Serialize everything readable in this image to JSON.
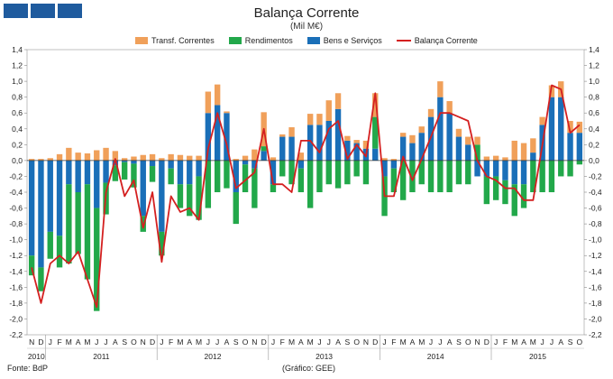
{
  "header": {
    "title": "Balança Corrente",
    "subtitle": "(Mil M€)"
  },
  "footer": {
    "source": "Fonte: BdP",
    "chart_credit": "(Gráfico: GEE)"
  },
  "colors": {
    "transf": "#f0a05a",
    "rend": "#22a84a",
    "bens": "#1a6fb8",
    "balanca": "#d42020",
    "bar_brand": "#1f5b9e"
  },
  "chart_data": {
    "type": "bar",
    "title": "Balança Corrente",
    "subtitle": "(Mil M€)",
    "stacked": true,
    "ylim": [
      -2.2,
      1.4
    ],
    "yticks": [
      "1,4",
      "1,2",
      "1,0",
      "0,8",
      "0,6",
      "0,4",
      "0,2",
      "0,0",
      "-0,2",
      "-0,4",
      "-0,6",
      "-0,8",
      "-1,0",
      "-1,2",
      "-1,4",
      "-1,6",
      "-1,8",
      "-2,0",
      "-2,2"
    ],
    "ytick_values": [
      1.4,
      1.2,
      1.0,
      0.8,
      0.6,
      0.4,
      0.2,
      0.0,
      -0.2,
      -0.4,
      -0.6,
      -0.8,
      -1.0,
      -1.2,
      -1.4,
      -1.6,
      -1.8,
      -2.0,
      -2.2
    ],
    "categories": [
      "N",
      "D",
      "J",
      "F",
      "M",
      "A",
      "M",
      "J",
      "J",
      "A",
      "S",
      "O",
      "N",
      "D",
      "J",
      "F",
      "M",
      "A",
      "M",
      "J",
      "J",
      "A",
      "S",
      "O",
      "N",
      "D",
      "J",
      "F",
      "M",
      "A",
      "M",
      "J",
      "J",
      "A",
      "S",
      "O",
      "N",
      "D",
      "J",
      "F",
      "M",
      "A",
      "M",
      "J",
      "J",
      "A",
      "S",
      "O",
      "N",
      "D",
      "J",
      "F",
      "M",
      "A",
      "M",
      "J",
      "J",
      "A",
      "S",
      "O"
    ],
    "years": [
      {
        "label": "2010",
        "start": 0,
        "end": 1
      },
      {
        "label": "2011",
        "start": 2,
        "end": 13
      },
      {
        "label": "2012",
        "start": 14,
        "end": 25
      },
      {
        "label": "2013",
        "start": 26,
        "end": 37
      },
      {
        "label": "2014",
        "start": 38,
        "end": 49
      },
      {
        "label": "2015",
        "start": 50,
        "end": 59
      }
    ],
    "series": [
      {
        "name": "Transf. Correntes",
        "type": "bar",
        "values": [
          0.02,
          0.02,
          0.03,
          0.08,
          0.16,
          0.1,
          0.09,
          0.13,
          0.16,
          0.12,
          0.03,
          0.05,
          0.07,
          0.08,
          0.03,
          0.08,
          0.07,
          0.06,
          0.06,
          0.27,
          0.26,
          0.02,
          0.02,
          0.06,
          0.14,
          0.43,
          0.04,
          0.03,
          0.12,
          0.1,
          0.14,
          0.14,
          0.26,
          0.2,
          0.06,
          0.04,
          0.1,
          0.3,
          0.03,
          0.02,
          0.05,
          0.1,
          0.08,
          0.1,
          0.2,
          0.15,
          0.1,
          0.1,
          0.1,
          0.05,
          0.06,
          0.04,
          0.25,
          0.22,
          0.18,
          0.1,
          0.15,
          0.2,
          0.15,
          0.14
        ]
      },
      {
        "name": "Rendimentos",
        "type": "bar",
        "values": [
          -0.25,
          -0.3,
          -0.34,
          -0.4,
          -1.0,
          -0.78,
          -1.2,
          -1.3,
          -0.4,
          -0.2,
          -0.22,
          -0.3,
          -0.2,
          -0.2,
          -0.3,
          -0.2,
          -0.3,
          -0.4,
          -0.55,
          -0.6,
          -0.4,
          -0.35,
          -0.4,
          -0.35,
          -0.5,
          0.06,
          -0.1,
          -0.2,
          -0.3,
          -0.3,
          -0.6,
          -0.4,
          -0.3,
          -0.35,
          -0.3,
          -0.2,
          -0.3,
          0.4,
          -0.5,
          -0.3,
          -0.5,
          -0.4,
          -0.3,
          -0.4,
          -0.4,
          -0.4,
          -0.3,
          -0.3,
          0.2,
          -0.35,
          -0.3,
          -0.3,
          -0.4,
          -0.3,
          -0.4,
          -0.4,
          -0.4,
          -0.2,
          -0.2,
          -0.05
        ]
      },
      {
        "name": "Bens e Serviços",
        "type": "bar",
        "values": [
          -1.2,
          -1.35,
          -0.9,
          -0.95,
          -0.3,
          -0.4,
          -0.3,
          -0.6,
          -0.28,
          -0.06,
          -0.02,
          -0.04,
          -0.7,
          -0.07,
          -0.9,
          -0.1,
          -0.3,
          -0.3,
          -0.2,
          0.6,
          0.7,
          0.6,
          -0.4,
          -0.05,
          -0.1,
          0.12,
          -0.3,
          0.3,
          0.3,
          -0.1,
          0.45,
          0.45,
          0.5,
          0.65,
          0.25,
          0.22,
          0.15,
          0.15,
          -0.2,
          -0.1,
          0.3,
          0.22,
          0.35,
          0.55,
          0.8,
          0.6,
          0.3,
          0.2,
          -0.2,
          -0.2,
          -0.2,
          -0.25,
          -0.3,
          -0.3,
          0.1,
          0.45,
          0.8,
          0.8,
          0.35,
          0.35
        ]
      },
      {
        "name": "Balança Corrente",
        "type": "line",
        "values": [
          -1.35,
          -1.8,
          -1.3,
          -1.2,
          -1.3,
          -1.15,
          -1.5,
          -1.85,
          -0.4,
          0.02,
          -0.45,
          -0.25,
          -0.85,
          -0.4,
          -1.28,
          -0.45,
          -0.65,
          -0.6,
          -0.75,
          0.15,
          0.6,
          0.2,
          -0.35,
          -0.25,
          -0.15,
          0.4,
          -0.3,
          -0.3,
          -0.4,
          0.25,
          0.25,
          0.1,
          0.4,
          0.5,
          0.02,
          0.2,
          0.05,
          0.85,
          -0.45,
          -0.45,
          0.05,
          -0.25,
          0.02,
          0.3,
          0.6,
          0.6,
          0.55,
          0.5,
          0.0,
          -0.2,
          -0.25,
          -0.35,
          -0.35,
          -0.5,
          -0.5,
          0.2,
          0.95,
          0.9,
          0.35,
          0.45
        ]
      }
    ]
  }
}
